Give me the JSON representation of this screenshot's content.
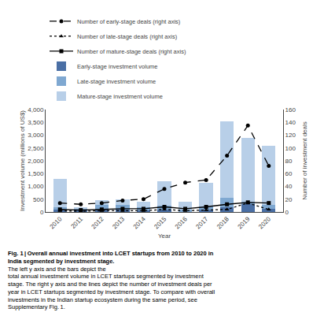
{
  "chart_data": {
    "type": "bar",
    "stacked": true,
    "xlabel": "Year",
    "ylabel": "Investment volume (millions of US$)",
    "y2label": "Number of investment deals",
    "categories": [
      "2010",
      "2011",
      "2012",
      "2013",
      "2014",
      "2015",
      "2016",
      "2017",
      "2018",
      "2019",
      "2020"
    ],
    "series": [
      {
        "name": "Early-stage investment volume",
        "type": "bar",
        "color": "#4a6fa5",
        "values": [
          100,
          50,
          80,
          80,
          50,
          100,
          30,
          80,
          200,
          300,
          130
        ]
      },
      {
        "name": "Late-stage investment volume",
        "type": "bar",
        "color": "#7fa8d1",
        "values": [
          100,
          70,
          200,
          200,
          130,
          150,
          50,
          130,
          350,
          100,
          150
        ]
      },
      {
        "name": "Mature-stage investment volume",
        "type": "bar",
        "color": "#b8cfe8",
        "values": [
          1100,
          80,
          170,
          200,
          220,
          950,
          310,
          920,
          3000,
          2500,
          2300
        ]
      },
      {
        "name": "Number of early-stage deals (right axis)",
        "type": "line",
        "axis": "y2",
        "color": "#000000",
        "marker": "circle",
        "line_style": "dash",
        "values": [
          14,
          12,
          14,
          18,
          20,
          36,
          46,
          50,
          88,
          135,
          72
        ]
      },
      {
        "name": "Number of late-stage deals (right axis)",
        "type": "line",
        "axis": "y2",
        "color": "#000000",
        "marker": "triangle-up",
        "line_style": "dot",
        "values": [
          2,
          1,
          2,
          2,
          2,
          4,
          2,
          3,
          4,
          14,
          4
        ]
      },
      {
        "name": "Number of mature-stage deals (right axis)",
        "type": "line",
        "axis": "y2",
        "color": "#000000",
        "marker": "square",
        "line_style": "solid",
        "values": [
          4,
          3,
          4,
          5,
          5,
          8,
          5,
          8,
          12,
          15,
          14
        ]
      }
    ],
    "ylim": [
      0,
      4000
    ],
    "yticks": [
      0,
      500,
      {
        "value": 1000,
        "label": "1,000"
      },
      {
        "value": 1500,
        "label": "1,500"
      },
      {
        "value": 2000,
        "label": "2,000"
      },
      {
        "value": 2500,
        "label": "2,500"
      },
      {
        "value": 3000,
        "label": "3,000"
      },
      {
        "value": 3500,
        "label": "3,500"
      },
      {
        "value": 4000,
        "label": "4,000"
      }
    ],
    "y2lim": [
      0,
      160
    ],
    "y2ticks": [
      0,
      20,
      40,
      60,
      80,
      100,
      120,
      140,
      160
    ],
    "grid": false,
    "legend": "upper left",
    "annotations": [
      "Fig. 1 | Overall annual investment into LCET startups from 2010 to 2020 in\nIndia segmented by investment stage.",
      "The left y axis and the bars depict the\ntotal annual investment volume in LCET startups segmented by investment\nstage. The right y axis and the lines depict the number of investment deals per\nyear in LCET startups segmented by investment stage. To compare with overall\ninvestments in the Indian startup ecosystem during the same period, see\nSupplementary Fig. 1."
    ]
  }
}
